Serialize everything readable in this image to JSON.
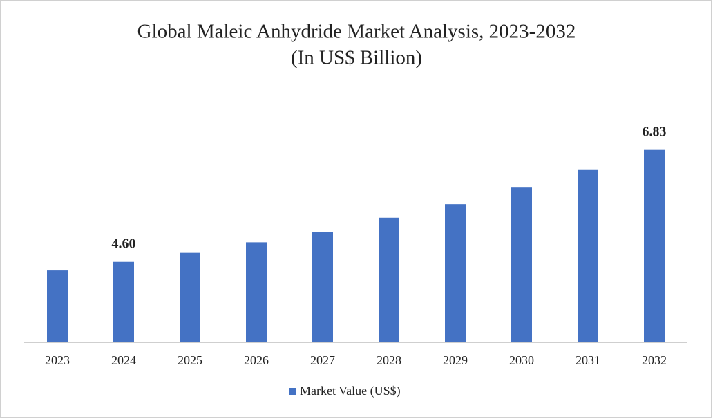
{
  "chart_data": {
    "type": "bar",
    "title": "Global Maleic Anhydride Market Analysis, 2023-2032",
    "subtitle": "(In US$ Billion)",
    "categories": [
      "2023",
      "2024",
      "2025",
      "2026",
      "2027",
      "2028",
      "2029",
      "2030",
      "2031",
      "2032"
    ],
    "series": [
      {
        "name": "Market Value (US$)",
        "color": "#4472c4",
        "values": [
          4.43,
          4.6,
          4.78,
          4.99,
          5.2,
          5.48,
          5.75,
          6.08,
          6.43,
          6.83
        ],
        "value_labels": [
          null,
          "4.60",
          null,
          null,
          null,
          null,
          null,
          null,
          null,
          "6.83"
        ]
      }
    ],
    "ylim": [
      3,
      7.5
    ],
    "legend": "bottom"
  }
}
